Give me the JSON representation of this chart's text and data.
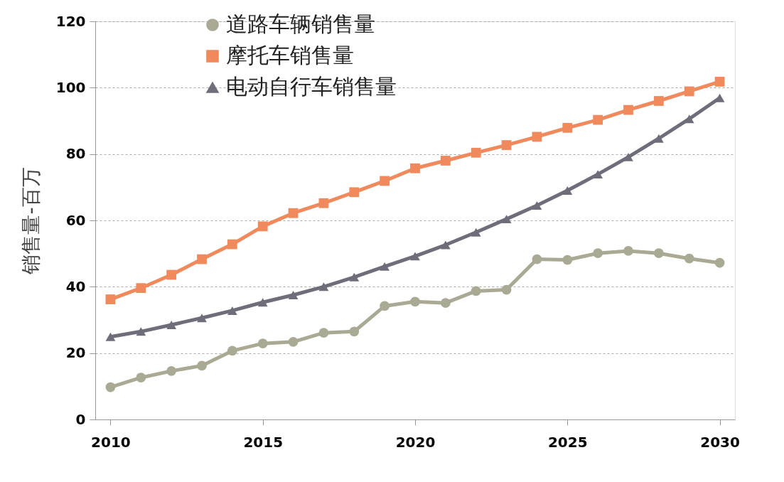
{
  "chart_data": {
    "type": "line",
    "ylabel": "销售量-百万",
    "x": [
      2010,
      2011,
      2012,
      2013,
      2014,
      2015,
      2016,
      2017,
      2018,
      2019,
      2020,
      2021,
      2022,
      2023,
      2024,
      2025,
      2026,
      2027,
      2028,
      2029,
      2030
    ],
    "xlim": [
      2009.5,
      2030.5
    ],
    "xticks": [
      2010,
      2015,
      2020,
      2025,
      2030
    ],
    "ylim": [
      0,
      120
    ],
    "yticks": [
      0,
      20,
      40,
      60,
      80,
      100,
      120
    ],
    "grid": "y",
    "legend": "top left",
    "line_style": "solid",
    "series": [
      {
        "name": "道路车辆销售量",
        "color": "#a9a994",
        "marker": "circle",
        "values": [
          9.7,
          12.6,
          14.6,
          16.2,
          20.7,
          22.9,
          23.4,
          26.1,
          26.5,
          34.2,
          35.5,
          35.1,
          38.7,
          39.1,
          48.3,
          48.1,
          50.1,
          50.8,
          50.1,
          48.5,
          47.2
        ]
      },
      {
        "name": "摩托车销售量",
        "color": "#f08a5d",
        "marker": "square",
        "values": [
          36.2,
          39.6,
          43.6,
          48.3,
          52.8,
          58.2,
          62.2,
          65.2,
          68.5,
          71.9,
          75.7,
          78.0,
          80.4,
          82.7,
          85.2,
          87.9,
          90.3,
          93.3,
          96.0,
          98.9,
          101.8
        ]
      },
      {
        "name": "电动自行车销售量",
        "color": "#6e6e7a",
        "marker": "triangle",
        "values": [
          24.9,
          26.5,
          28.5,
          30.6,
          32.8,
          35.3,
          37.5,
          40.0,
          42.9,
          46.1,
          49.2,
          52.6,
          56.4,
          60.4,
          64.5,
          69.0,
          73.9,
          79.1,
          84.7,
          90.6,
          96.9
        ]
      }
    ]
  }
}
